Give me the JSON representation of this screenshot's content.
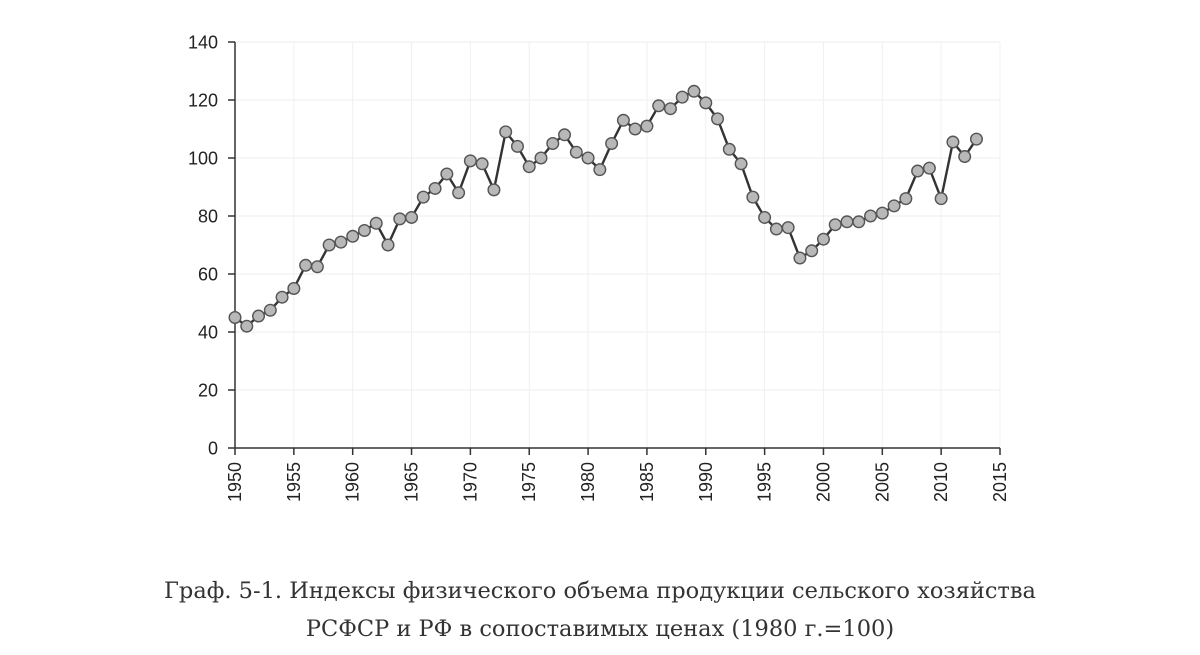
{
  "caption": {
    "line1": "Граф. 5-1. Индексы физического объема продукции сельского хозяйства",
    "line2": "РСФСР и РФ в сопоставимых ценах (1980 г.=100)"
  },
  "chart_data": {
    "type": "line",
    "title": "",
    "xlabel": "",
    "ylabel": "",
    "xlim": [
      1950,
      2015
    ],
    "ylim": [
      0,
      140
    ],
    "x_ticks": [
      1950,
      1955,
      1960,
      1965,
      1970,
      1975,
      1980,
      1985,
      1990,
      1995,
      2000,
      2005,
      2010,
      2015
    ],
    "y_ticks": [
      0,
      20,
      40,
      60,
      80,
      100,
      120,
      140
    ],
    "grid": true,
    "line_color": "#333333",
    "marker_fill": "#b8b8b8",
    "marker_stroke": "#555555",
    "series": [
      {
        "x": [
          1950,
          1951,
          1952,
          1953,
          1954,
          1955,
          1956,
          1957,
          1958,
          1959,
          1960,
          1961,
          1962,
          1963,
          1964,
          1965,
          1966,
          1967,
          1968,
          1969,
          1970,
          1971,
          1972,
          1973,
          1974,
          1975,
          1976,
          1977,
          1978,
          1979,
          1980,
          1981,
          1982,
          1983,
          1984,
          1985,
          1986,
          1987,
          1988,
          1989,
          1990,
          1991,
          1992,
          1993,
          1994,
          1995,
          1996,
          1997,
          1998,
          1999,
          2000,
          2001,
          2002,
          2003,
          2004,
          2005,
          2006,
          2007,
          2008,
          2009,
          2010,
          2011,
          2012,
          2013
        ],
        "y": [
          45,
          42,
          45.5,
          47.5,
          52,
          55,
          63,
          62.5,
          70,
          71,
          73,
          75,
          77.5,
          70,
          79,
          79.5,
          86.5,
          89.5,
          94.5,
          88,
          99,
          98,
          89,
          109,
          104,
          97,
          100,
          105,
          108,
          102,
          100,
          96,
          105,
          113,
          110,
          111,
          118,
          117,
          121,
          123,
          119,
          113.5,
          103,
          98,
          86.5,
          79.5,
          75.5,
          76,
          65.5,
          68,
          72,
          77,
          78,
          78,
          80,
          81,
          83.5,
          86,
          95.5,
          96.5,
          86,
          105.5,
          100.5,
          106.5
        ]
      }
    ]
  }
}
